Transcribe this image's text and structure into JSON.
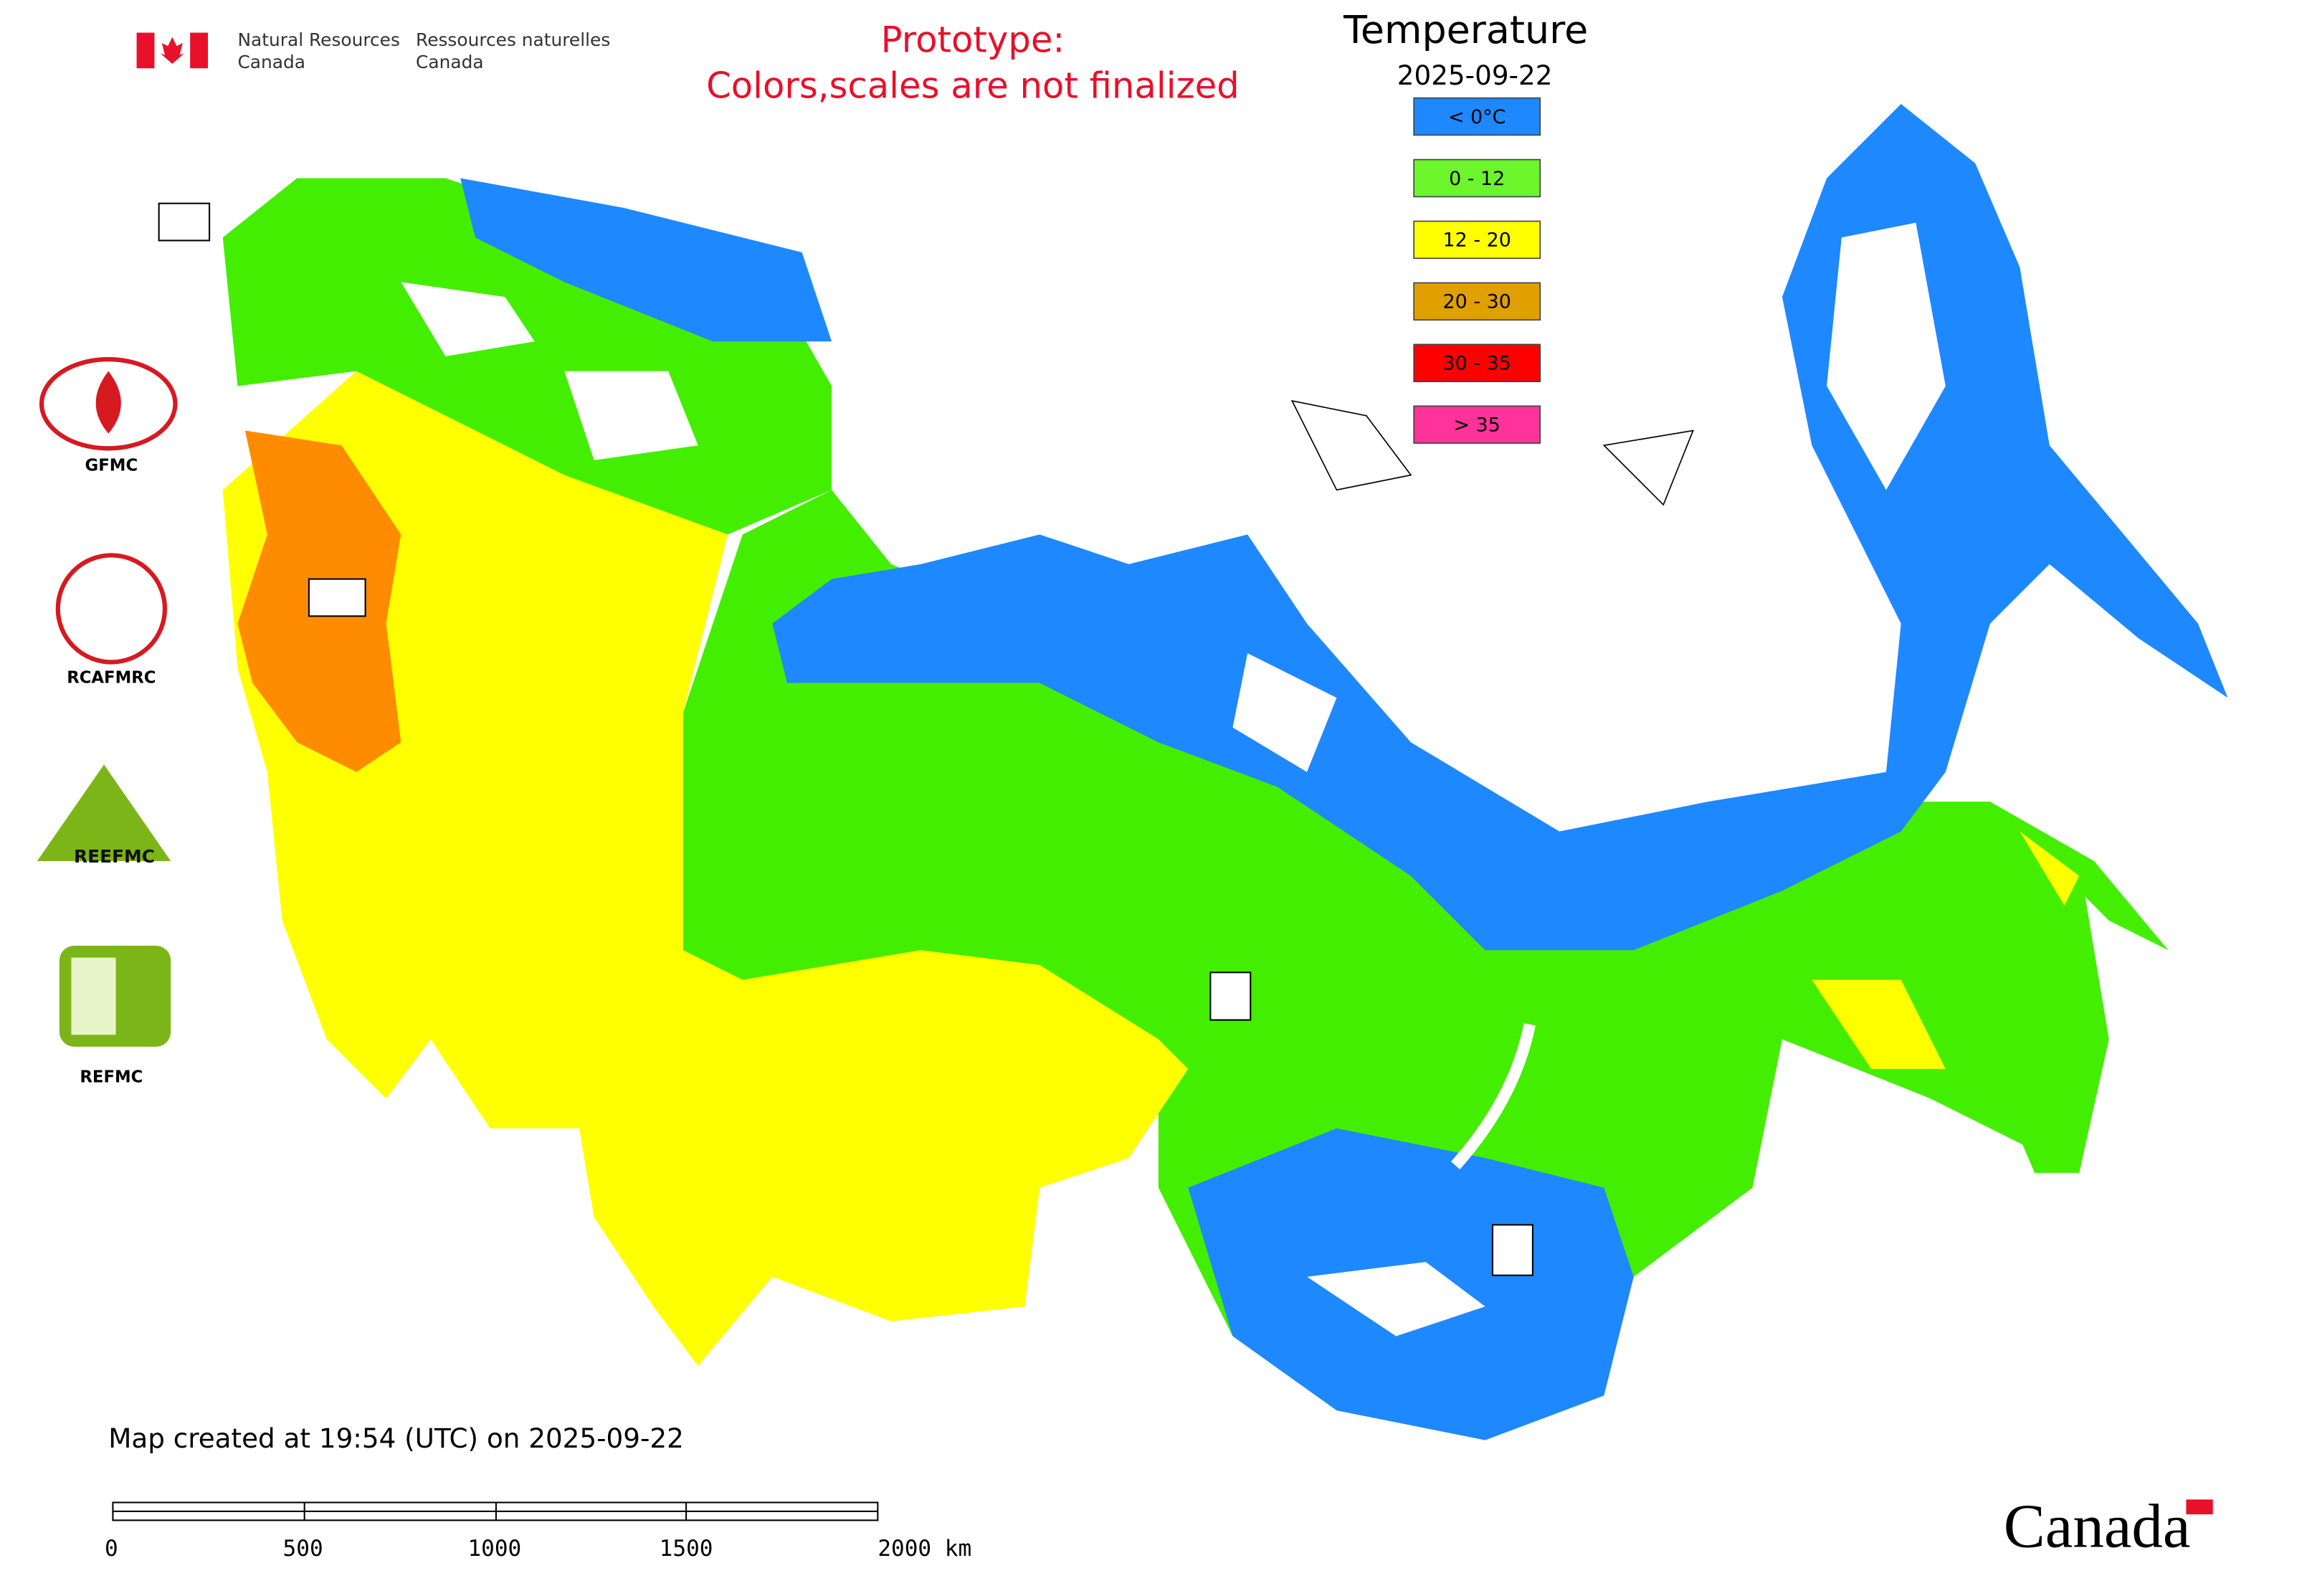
{
  "header": {
    "department_en": [
      "Natural Resources",
      "Canada"
    ],
    "department_fr": [
      "Ressources naturelles",
      "Canada"
    ],
    "notice": [
      "Prototype:",
      "Colors,scales are not finalized"
    ]
  },
  "legend": {
    "title": "Temperature",
    "date": "2025-09-22",
    "items": [
      {
        "label": "< 0°C",
        "color": "#1e88ff"
      },
      {
        "label": "0 - 12",
        "color": "#6cf52a"
      },
      {
        "label": "12 - 20",
        "color": "#ffff00"
      },
      {
        "label": "20 - 30",
        "color": "#e0a000"
      },
      {
        "label": "30 - 35",
        "color": "#ff0000"
      },
      {
        "label": "> 35",
        "color": "#ff3399"
      }
    ]
  },
  "centers": [
    "GFMC",
    "RCAFMRC",
    "REEFMC",
    "REFMC"
  ],
  "footer": {
    "created": "Map created at 19:54 (UTC) on 2025-09-22",
    "scale_labels": [
      "0",
      "500",
      "1000",
      "1500",
      "2000 km"
    ],
    "wordmark": "Canada"
  }
}
